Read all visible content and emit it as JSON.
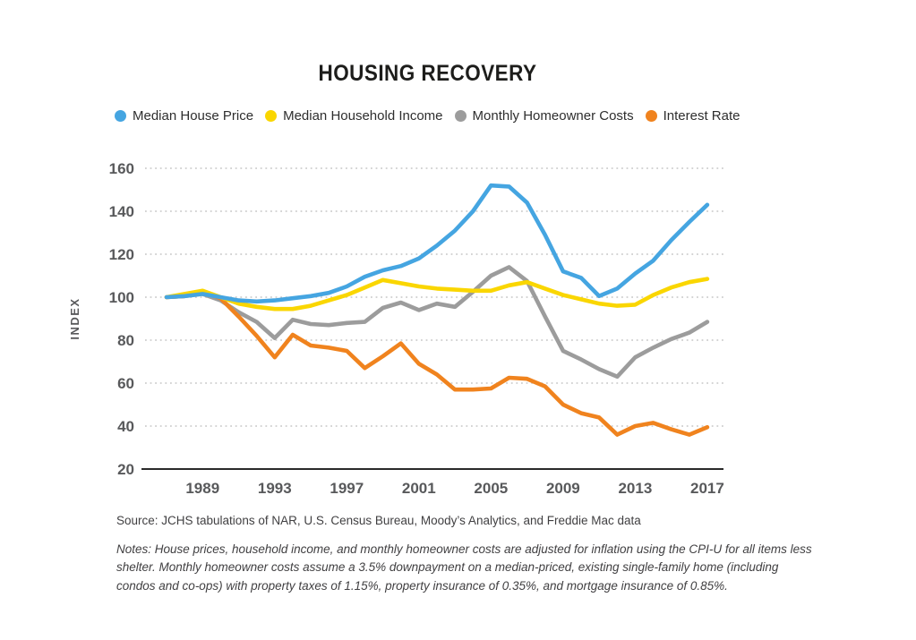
{
  "title": "HOUSING RECOVERY",
  "legend": {
    "items": [
      {
        "label": "Median House Price",
        "color": "#45A5E1"
      },
      {
        "label": "Median Household Income",
        "color": "#FAD600"
      },
      {
        "label": "Monthly Homeowner Costs",
        "color": "#9C9C9C"
      },
      {
        "label": "Interest Rate",
        "color": "#F0831E"
      }
    ]
  },
  "chart_data": {
    "type": "line",
    "title": "HOUSING RECOVERY",
    "ylabel": "INDEX",
    "xlabel": "",
    "ylim": [
      20,
      160
    ],
    "yticks": [
      20,
      40,
      60,
      80,
      100,
      120,
      140,
      160
    ],
    "xticks": [
      1989,
      1993,
      1997,
      2001,
      2005,
      2009,
      2013,
      2017
    ],
    "grid": "horizontal-dotted",
    "legend_position": "top",
    "x": [
      1987,
      1988,
      1989,
      1990,
      1991,
      1992,
      1993,
      1994,
      1995,
      1996,
      1997,
      1998,
      1999,
      2000,
      2001,
      2002,
      2003,
      2004,
      2005,
      2006,
      2007,
      2008,
      2009,
      2010,
      2011,
      2012,
      2013,
      2014,
      2015,
      2016,
      2017
    ],
    "series": [
      {
        "name": "Median House Price",
        "color": "#45A5E1",
        "values": [
          100,
          100.5,
          101.5,
          100,
          98.5,
          98,
          98.5,
          99.5,
          100.5,
          102,
          105,
          109.5,
          112.5,
          114.5,
          118,
          124,
          131,
          140,
          152,
          151.5,
          144,
          129,
          112,
          109,
          100.5,
          104,
          111,
          117,
          126.5,
          135,
          143
        ]
      },
      {
        "name": "Median Household Income",
        "color": "#FAD600",
        "values": [
          100,
          101.5,
          103,
          100,
          97,
          95.5,
          94.5,
          94.5,
          96,
          98.5,
          101,
          104.5,
          108,
          106.5,
          105,
          104,
          103.5,
          103,
          103,
          105.5,
          107,
          104,
          101,
          99,
          97,
          96,
          96.5,
          101,
          104.5,
          107,
          108.5
        ]
      },
      {
        "name": "Monthly Homeowner Costs",
        "color": "#9C9C9C",
        "values": [
          100,
          100.5,
          101.5,
          98.5,
          93,
          88.5,
          81,
          89.5,
          87.5,
          87,
          88,
          88.5,
          95,
          97.5,
          94,
          97,
          95.5,
          102.5,
          110,
          114,
          107.5,
          91,
          75,
          71,
          66.5,
          63,
          72,
          76.5,
          80.5,
          83.5,
          88.5
        ]
      },
      {
        "name": "Interest Rate",
        "color": "#F0831E",
        "values": [
          100,
          100.5,
          102.5,
          99.5,
          91,
          82,
          72,
          82.5,
          77.5,
          76.5,
          75,
          67,
          72.5,
          78.5,
          69,
          64,
          57,
          57,
          57.5,
          62.5,
          62,
          58.5,
          50,
          46,
          44,
          36,
          40,
          41.5,
          38.5,
          36,
          39.5
        ]
      }
    ]
  },
  "axis_style": {
    "tick_color": "#58595B",
    "grid_color": "#C6C6C6",
    "axis_line_color": "#2A2A2A"
  },
  "source": "Source: JCHS tabulations of NAR, U.S. Census Bureau, Moody’s Analytics, and Freddie Mac data",
  "notes": "Notes: House prices, household income, and monthly homeowner costs are adjusted for inflation using the CPI-U for all items less shelter. Monthly homeowner costs assume a 3.5% downpayment on a median-priced, existing single-family home (including condos and co-ops) with property taxes of 1.15%, property insurance of 0.35%, and mortgage insurance of 0.85%."
}
